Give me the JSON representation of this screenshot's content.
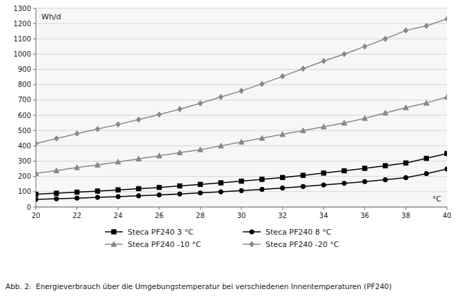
{
  "chart_data": {
    "type": "line",
    "title": "Abb. 2:  Energieverbrauch über die Umgebungstemperatur bei verschiedenen Innentemperaturen (PF240)",
    "x_label": "°C",
    "y_label": "Wh/d",
    "x": [
      20,
      21,
      22,
      23,
      24,
      25,
      26,
      27,
      28,
      29,
      30,
      31,
      32,
      33,
      34,
      35,
      36,
      37,
      38,
      39,
      40
    ],
    "series": [
      {
        "name": "Steca PF240 3 °C",
        "color": "#000000",
        "marker": "square",
        "values": [
          83,
          90,
          97,
          104,
          112,
          120,
          128,
          138,
          148,
          158,
          169,
          181,
          193,
          207,
          222,
          237,
          253,
          270,
          288,
          318,
          350
        ]
      },
      {
        "name": "Steca PF240 8 °C",
        "color": "#000000",
        "marker": "circle",
        "values": [
          50,
          54,
          58,
          63,
          68,
          73,
          79,
          85,
          92,
          99,
          107,
          115,
          124,
          134,
          144,
          155,
          166,
          178,
          192,
          218,
          248
        ]
      },
      {
        "name": "Steca PF240 -10 °C",
        "color": "#888888",
        "marker": "triangle",
        "values": [
          220,
          238,
          258,
          275,
          295,
          315,
          335,
          355,
          375,
          400,
          425,
          450,
          475,
          500,
          525,
          550,
          580,
          615,
          650,
          680,
          720
        ]
      },
      {
        "name": "Steca PF240 -20 °C",
        "color": "#888888",
        "marker": "diamond",
        "values": [
          415,
          448,
          480,
          510,
          540,
          572,
          605,
          640,
          678,
          720,
          760,
          805,
          855,
          905,
          955,
          1000,
          1050,
          1100,
          1155,
          1185,
          1230
        ]
      }
    ],
    "xlim": [
      20,
      40
    ],
    "ylim": [
      0,
      1300
    ],
    "xticks": [
      20,
      22,
      24,
      26,
      28,
      30,
      32,
      34,
      36,
      38,
      40
    ],
    "yticks": [
      0,
      100,
      200,
      300,
      400,
      500,
      600,
      700,
      800,
      900,
      1000,
      1100,
      1200,
      1300
    ],
    "grid": true,
    "legend": "bottom"
  }
}
